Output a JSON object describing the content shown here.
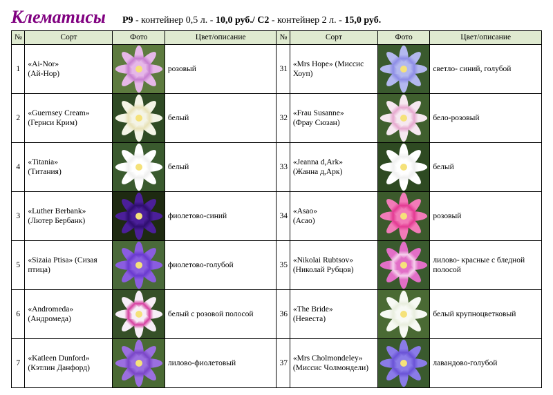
{
  "title": "Клематисы",
  "subtitle_parts": {
    "p1": "P9",
    "p2": " - контейнер 0,5 л. - ",
    "p3": "10,0 руб./",
    "p4": " C2",
    "p5": " - контейнер 2 л. - ",
    "p6": "15,0 руб."
  },
  "columns": {
    "num": "№",
    "sort": "Сорт",
    "photo": "Фото",
    "desc": "Цвет/описание"
  },
  "rows_left": [
    {
      "num": "1",
      "sort": "«Ai-Nor»\n(Ай-Нор)",
      "desc": "розовый",
      "bg": "#5d7b3f",
      "petal": "#e6b7e8",
      "stripe": "#c77fd1"
    },
    {
      "num": "2",
      "sort": "«Guernsey Cream»\n(Гернси Крим)",
      "desc": "белый",
      "bg": "#2f4a24",
      "petal": "#f4f4e6",
      "stripe": "#e8e2b8"
    },
    {
      "num": "4",
      "sort": "«Titania»\n(Титания)",
      "desc": "белый",
      "bg": "#3a5a2e",
      "petal": "#ffffff",
      "stripe": "#f0f0f0"
    },
    {
      "num": "3",
      "sort": "«Luther Berbank»\n(Лютер Бербанк)",
      "desc": "фиолетово-синий",
      "bg": "#1e2a12",
      "petal": "#4b1f9a",
      "stripe": "#2e0e6e"
    },
    {
      "num": "5",
      "sort": "«Sizaia Ptisa» (Сизая птица)",
      "desc": "фиолетово-голубой",
      "bg": "#4a6a3a",
      "petal": "#8a5de0",
      "stripe": "#6a3acf"
    },
    {
      "num": "6",
      "sort": "«Andromeda»\n(Андромеда)",
      "desc": "белый с розовой полосой",
      "bg": "#365028",
      "petal": "#f7eef7",
      "stripe": "#d63fa0"
    },
    {
      "num": "7",
      "sort": "«Katleen Dunford»\n(Кэтлин Данфорд)",
      "desc": "лилово-фиолетовый",
      "bg": "#4a6a34",
      "petal": "#9b6fe0",
      "stripe": "#7a46c7"
    }
  ],
  "rows_right": [
    {
      "num": "31",
      "sort": "«Mrs Hope» (Миссис Хоуп)",
      "desc": "светло- синий, голубой",
      "bg": "#3a5a2e",
      "petal": "#b3b8ef",
      "stripe": "#8e8de6"
    },
    {
      "num": "32",
      "sort": "«Frau Susanne»\n(Фрау Сюзан)",
      "desc": "бело-розовый",
      "bg": "#3f5f2e",
      "petal": "#f6e8f0",
      "stripe": "#e6a8cf"
    },
    {
      "num": "33",
      "sort": "«Jeanna d,Ark»\n(Жанна д,Арк)",
      "desc": "белый",
      "bg": "#2e4a22",
      "petal": "#ffffff",
      "stripe": "#f0f0f0"
    },
    {
      "num": "34",
      "sort": "«Asao»\n(Асао)",
      "desc": "розовый",
      "bg": "#3c5a2c",
      "petal": "#f27bb8",
      "stripe": "#e33a93"
    },
    {
      "num": "35",
      "sort": "«Nikolai Rubtsov»\n(Николай Рубцов)",
      "desc": "лилово- красные с бледной полосой",
      "bg": "#3a5a2e",
      "petal": "#e26fc7",
      "stripe": "#f5d0ec"
    },
    {
      "num": "36",
      "sort": "«The Bride»\n(Невеста)",
      "desc": "белый крупноцветковый",
      "bg": "#4a6a34",
      "petal": "#f7f9f4",
      "stripe": "#e8eede"
    },
    {
      "num": "37",
      "sort": "«Mrs Cholmondeley»\n(Миссис Чолмондели)",
      "desc": "лавандово-голубой",
      "bg": "#3a5a2e",
      "petal": "#8a7be8",
      "stripe": "#6a53d6"
    }
  ]
}
